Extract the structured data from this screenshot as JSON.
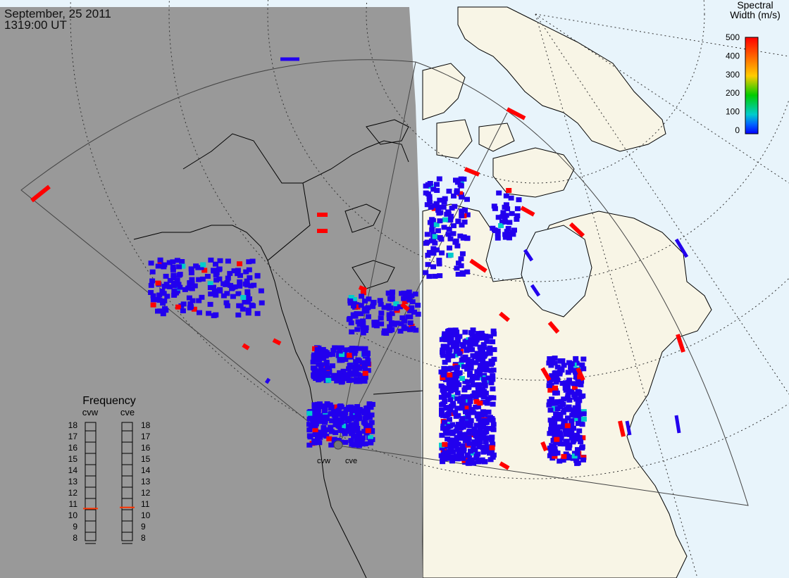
{
  "header": {
    "date": "September, 25 2011",
    "time": "1319:00 UT"
  },
  "colorbar": {
    "title_line1": "Spectral",
    "title_line2": "Width (m/s)",
    "ticks": [
      "500",
      "400",
      "300",
      "200",
      "100",
      "0"
    ],
    "colors": [
      "#ff0000",
      "#ff6600",
      "#ffcc00",
      "#00cc00",
      "#00cccc",
      "#0066ff",
      "#0000ff"
    ]
  },
  "frequency_panel": {
    "title": "Frequency",
    "radars": [
      "cvw",
      "cve"
    ],
    "levels": [
      "18",
      "17",
      "16",
      "15",
      "14",
      "13",
      "12",
      "11",
      "10",
      "9",
      "8"
    ],
    "current_mhz": {
      "cvw": 10.6,
      "cve": 10.7
    },
    "indicator_color": "#ff3300"
  },
  "radar_sites": {
    "west_label": "cvw",
    "east_label": "cve"
  },
  "map_colors": {
    "night_shade": "#999999",
    "day_land": "#f8f5e6",
    "day_water": "#e8f4fb",
    "echo_low": "#2200ee"
  }
}
